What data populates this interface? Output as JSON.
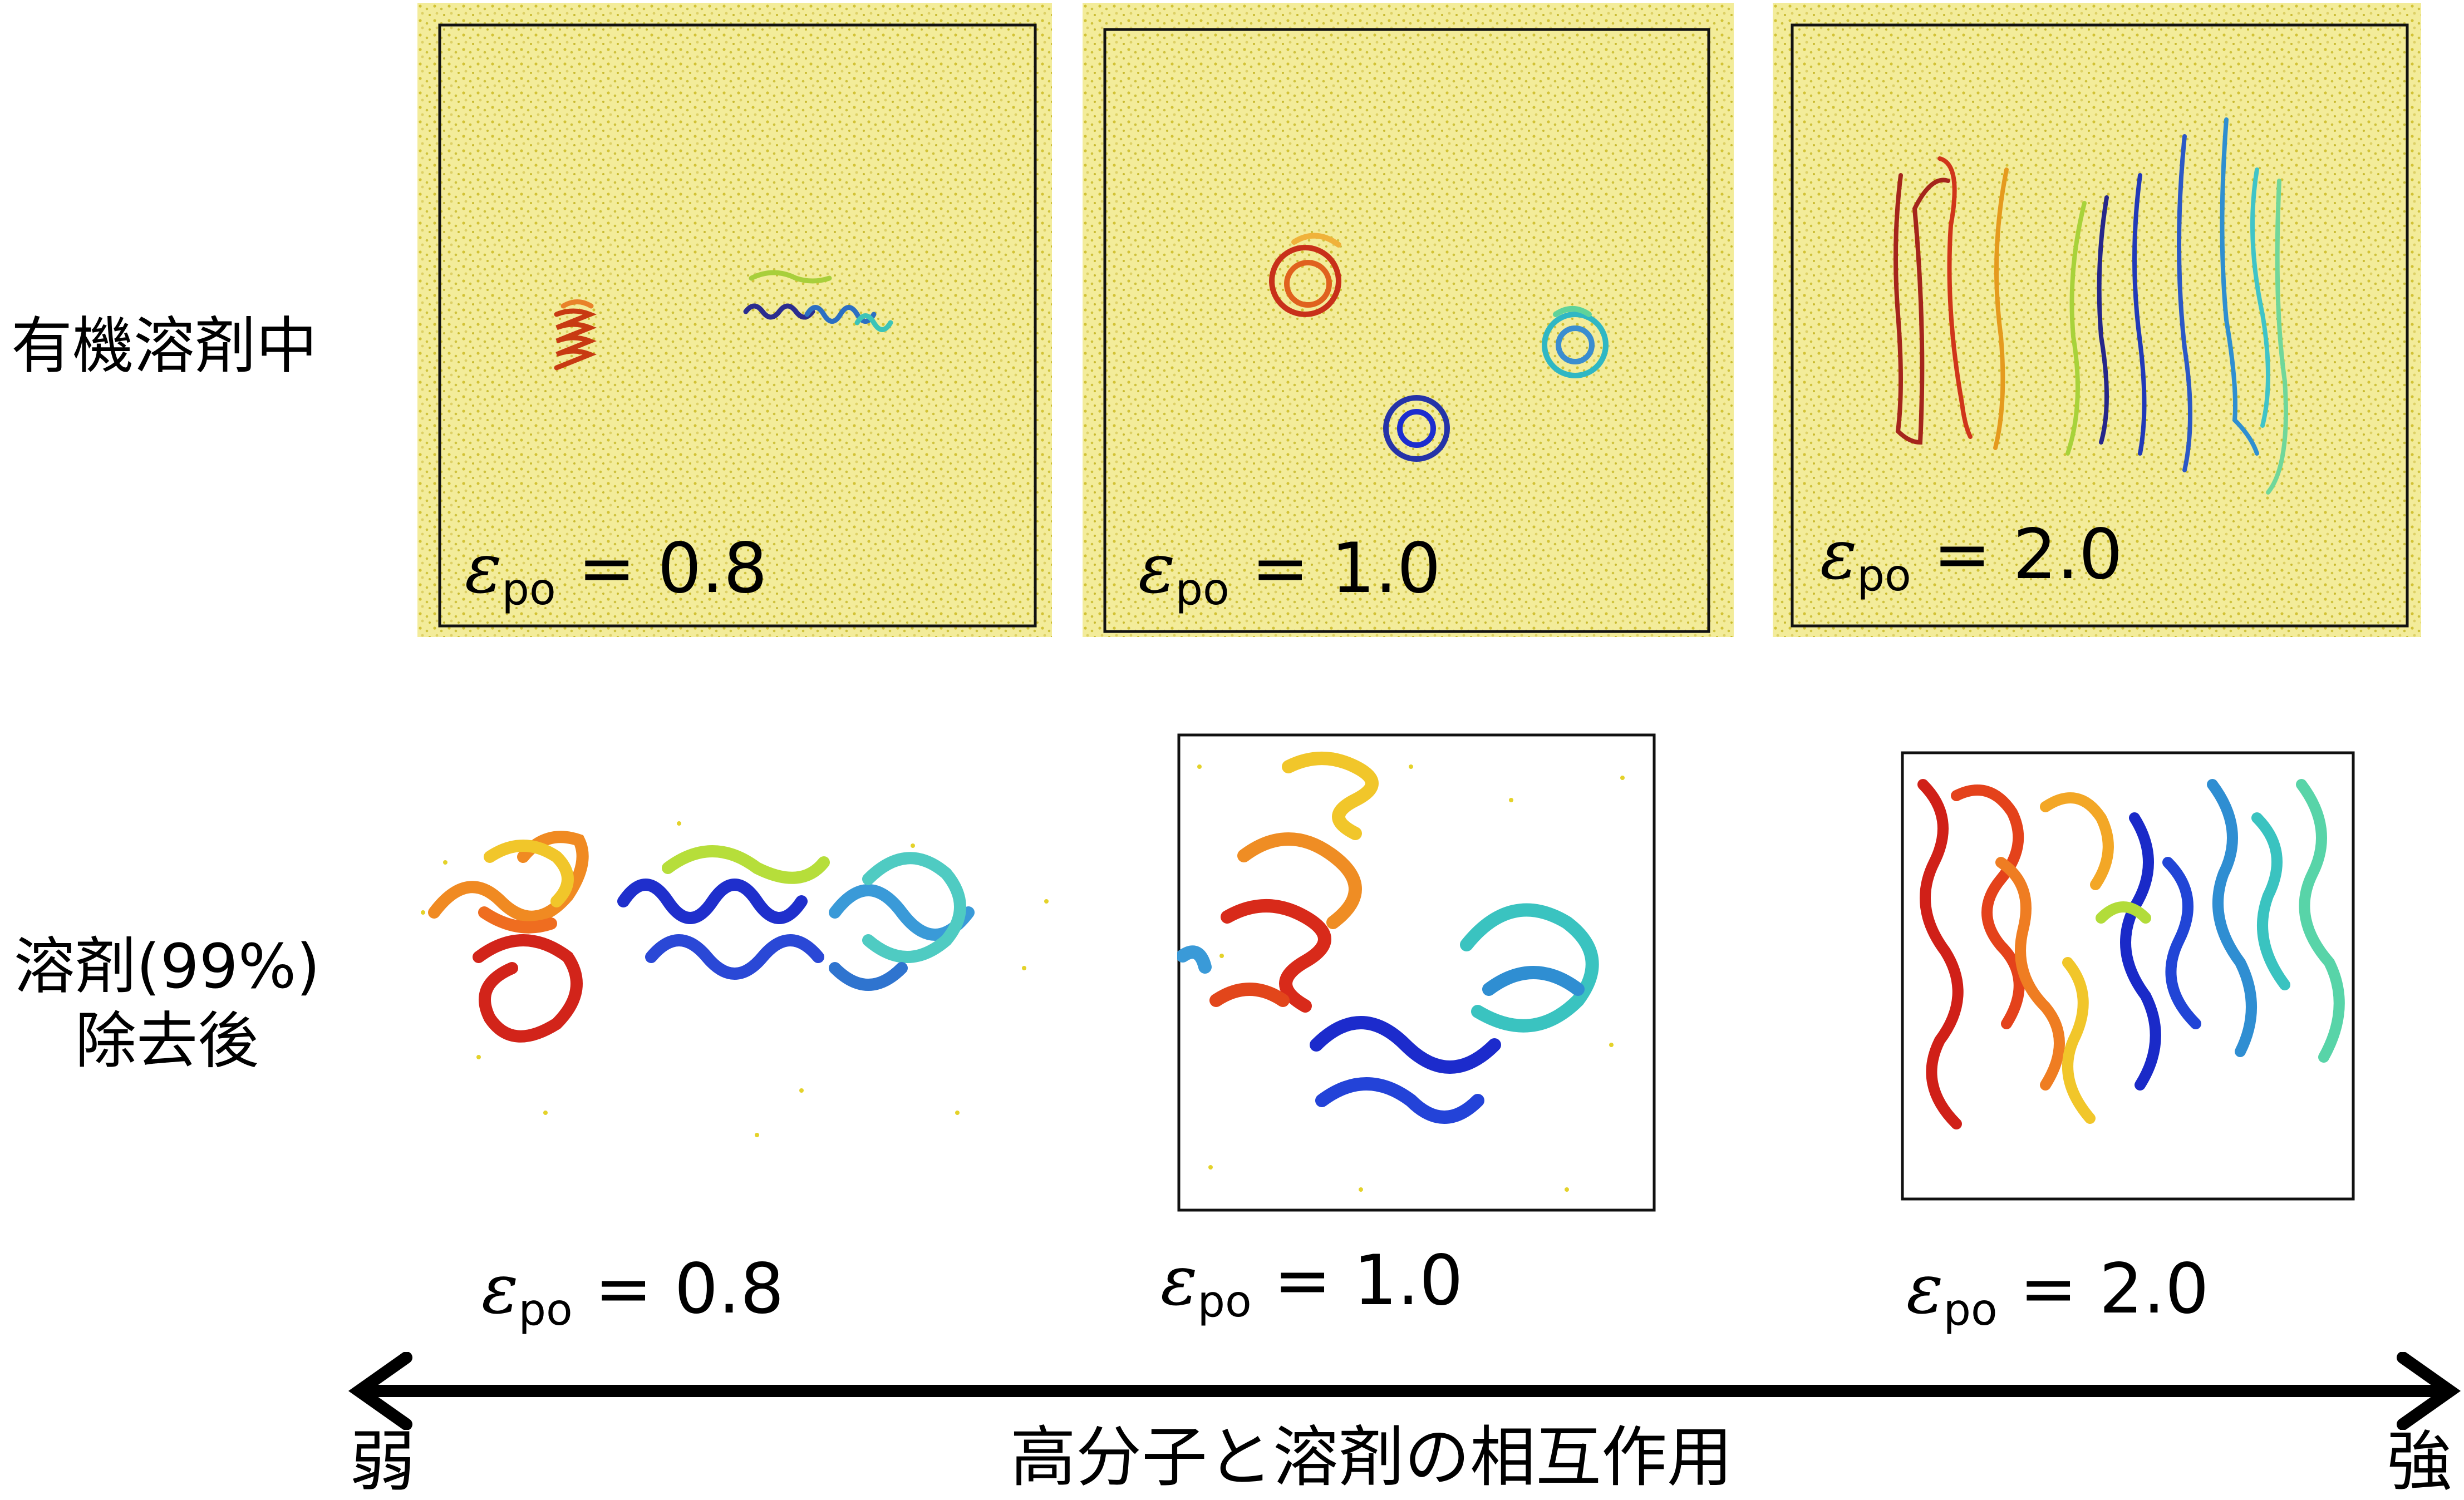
{
  "row_labels": {
    "top": "有機溶剤中",
    "bottom_line1": "溶剤(99%)",
    "bottom_line2": "除去後"
  },
  "epsilon_symbol": "ε",
  "epsilon_subscript": "po",
  "top_panels": [
    {
      "label": " = 0.8"
    },
    {
      "label": " = 1.0"
    },
    {
      "label": " = 2.0"
    }
  ],
  "bottom_panels": [
    {
      "label": " = 0.8"
    },
    {
      "label": " = 1.0"
    },
    {
      "label": " = 2.0"
    }
  ],
  "axis": {
    "left": "弱",
    "center": "高分子と溶剤の相互作用",
    "right": "強"
  },
  "colors": {
    "solvent_bg": "#f3ec9a",
    "solvent_dots": "#d8c93a",
    "frame": "#111111",
    "arrow": "#000000"
  }
}
